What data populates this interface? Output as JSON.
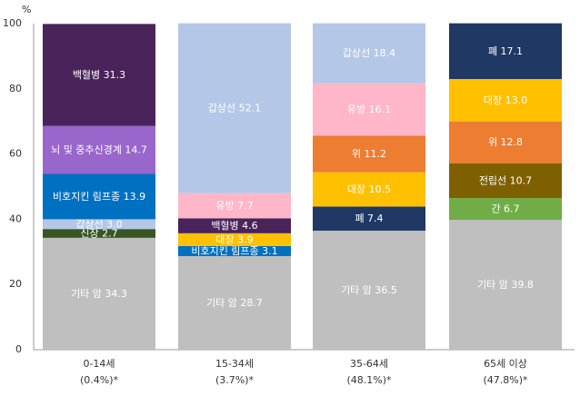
{
  "chart_data": {
    "type": "bar",
    "stacked": true,
    "ylabel": "%",
    "ylim": [
      0,
      100
    ],
    "yticks": [
      0,
      20,
      40,
      60,
      80,
      100
    ],
    "categories": [
      {
        "line1": "0-14세",
        "line2": "(0.4%)*"
      },
      {
        "line1": "15-34세",
        "line2": "(3.7%)*"
      },
      {
        "line1": "35-64세",
        "line2": "(48.1%)*"
      },
      {
        "line1": "65세 이상",
        "line2": "(47.8%)*"
      }
    ],
    "stacks": [
      [
        {
          "name": "기타 암",
          "value": 34.3,
          "color": "#bfbfbf"
        },
        {
          "name": "신장",
          "value": 2.7,
          "color": "#375623"
        },
        {
          "name": "갑상선",
          "value": 3.0,
          "color": "#b4c7e7"
        },
        {
          "name": "비호지킨 림프종",
          "value": 13.9,
          "color": "#0070c0"
        },
        {
          "name": "뇌 및 중추신경계",
          "value": 14.7,
          "color": "#9966cc"
        },
        {
          "name": "백혈병",
          "value": 31.3,
          "color": "#4a235a"
        }
      ],
      [
        {
          "name": "기타 암",
          "value": 28.7,
          "color": "#bfbfbf"
        },
        {
          "name": "비호지킨 림프종",
          "value": 3.1,
          "color": "#0070c0"
        },
        {
          "name": "대장",
          "value": 3.9,
          "color": "#ffc000"
        },
        {
          "name": "백혈병",
          "value": 4.6,
          "color": "#4a235a"
        },
        {
          "name": "유방",
          "value": 7.7,
          "color": "#ffb6c8"
        },
        {
          "name": "갑상선",
          "value": 52.1,
          "color": "#b4c7e7"
        }
      ],
      [
        {
          "name": "기타 암",
          "value": 36.5,
          "color": "#bfbfbf"
        },
        {
          "name": "폐",
          "value": 7.4,
          "color": "#1f3864"
        },
        {
          "name": "대장",
          "value": 10.5,
          "color": "#ffc000"
        },
        {
          "name": "위",
          "value": 11.2,
          "color": "#ed7d31"
        },
        {
          "name": "유방",
          "value": 16.1,
          "color": "#ffb6c8"
        },
        {
          "name": "갑상선",
          "value": 18.4,
          "color": "#b4c7e7"
        }
      ],
      [
        {
          "name": "기타 암",
          "value": 39.8,
          "color": "#bfbfbf"
        },
        {
          "name": "간",
          "value": 6.7,
          "color": "#70ad47"
        },
        {
          "name": "전립선",
          "value": 10.7,
          "color": "#7f6000"
        },
        {
          "name": "위",
          "value": 12.8,
          "color": "#ed7d31"
        },
        {
          "name": "대장",
          "value": 13.0,
          "color": "#ffc000"
        },
        {
          "name": "폐",
          "value": 17.1,
          "color": "#1f3864"
        }
      ]
    ],
    "grid": false,
    "legend": "none"
  }
}
